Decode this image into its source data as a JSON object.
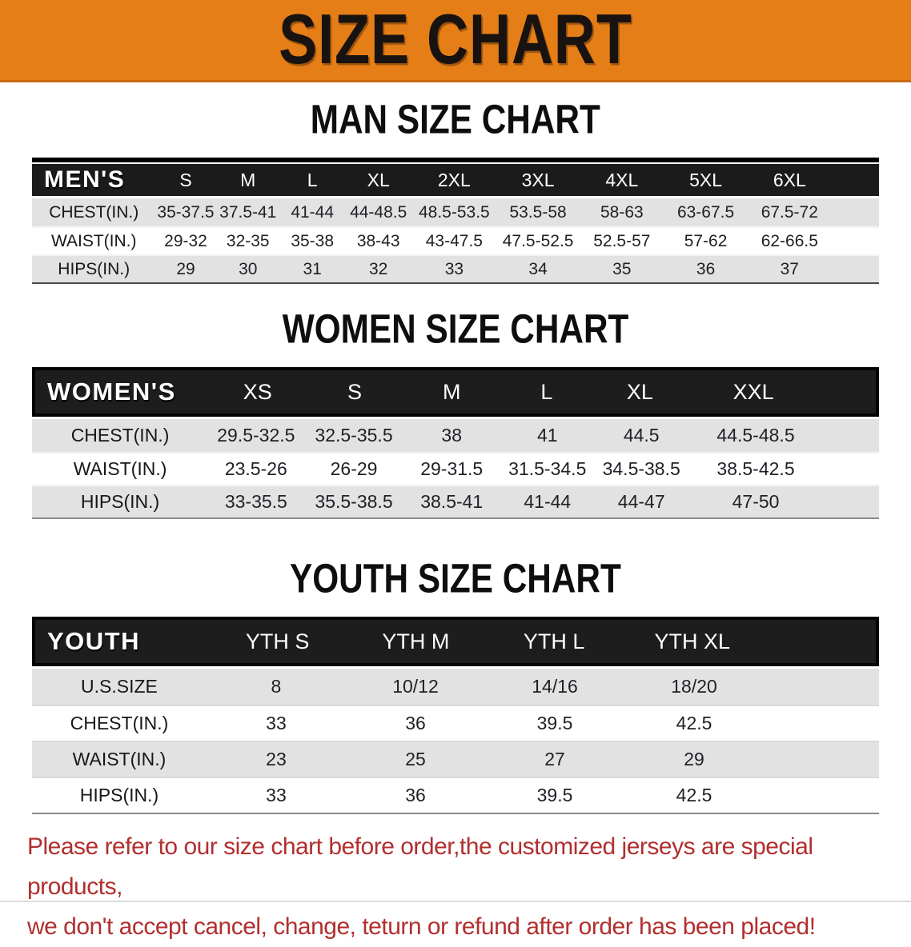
{
  "banner": {
    "title": "SIZE CHART"
  },
  "colors": {
    "banner_orange": "#E67E17",
    "header_bar_black": "#1B1B1B",
    "row_shade_gray": "#E2E2E2",
    "footer_red": "#B12F2F"
  },
  "sections": [
    {
      "id": "men",
      "heading": "MAN SIZE CHART",
      "table": {
        "label": "MEN'S",
        "columns": [
          "S",
          "M",
          "L",
          "XL",
          "2XL",
          "3XL",
          "4XL",
          "5XL",
          "6XL"
        ],
        "rows": [
          {
            "label": "CHEST(IN.)",
            "values": [
              "35-37.5",
              "37.5-41",
              "41-44",
              "44-48.5",
              "48.5-53.5",
              "53.5-58",
              "58-63",
              "63-67.5",
              "67.5-72"
            ]
          },
          {
            "label": "WAIST(IN.)",
            "values": [
              "29-32",
              "32-35",
              "35-38",
              "38-43",
              "43-47.5",
              "47.5-52.5",
              "52.5-57",
              "57-62",
              "62-66.5"
            ]
          },
          {
            "label": "HIPS(IN.)",
            "values": [
              "29",
              "30",
              "31",
              "32",
              "33",
              "34",
              "35",
              "36",
              "37"
            ]
          }
        ]
      }
    },
    {
      "id": "women",
      "heading": "WOMEN SIZE CHART",
      "table": {
        "label": "WOMEN'S",
        "columns": [
          "XS",
          "S",
          "M",
          "L",
          "XL",
          "XXL"
        ],
        "rows": [
          {
            "label": "CHEST(IN.)",
            "values": [
              "29.5-32.5",
              "32.5-35.5",
              "38",
              "41",
              "44.5",
              "44.5-48.5"
            ]
          },
          {
            "label": "WAIST(IN.)",
            "values": [
              "23.5-26",
              "26-29",
              "29-31.5",
              "31.5-34.5",
              "34.5-38.5",
              "38.5-42.5"
            ]
          },
          {
            "label": "HIPS(IN.)",
            "values": [
              "33-35.5",
              "35.5-38.5",
              "38.5-41",
              "41-44",
              "44-47",
              "47-50"
            ]
          }
        ]
      }
    },
    {
      "id": "youth",
      "heading": "YOUTH SIZE CHART",
      "table": {
        "label": "YOUTH",
        "columns": [
          "YTH S",
          "YTH M",
          "YTH L",
          "YTH XL"
        ],
        "rows": [
          {
            "label": "U.S.SIZE",
            "values": [
              "8",
              "10/12",
              "14/16",
              "18/20"
            ]
          },
          {
            "label": "CHEST(IN.)",
            "values": [
              "33",
              "36",
              "39.5",
              "42.5"
            ]
          },
          {
            "label": "WAIST(IN.)",
            "values": [
              "23",
              "25",
              "27",
              "29"
            ]
          },
          {
            "label": "HIPS(IN.)",
            "values": [
              "33",
              "36",
              "39.5",
              "42.5"
            ]
          }
        ]
      }
    }
  ],
  "footer": {
    "line1": "Please refer to our size chart before order,the customized jerseys are special products,",
    "line2": "we don't accept cancel, change, teturn or refund after order has been placed!"
  }
}
